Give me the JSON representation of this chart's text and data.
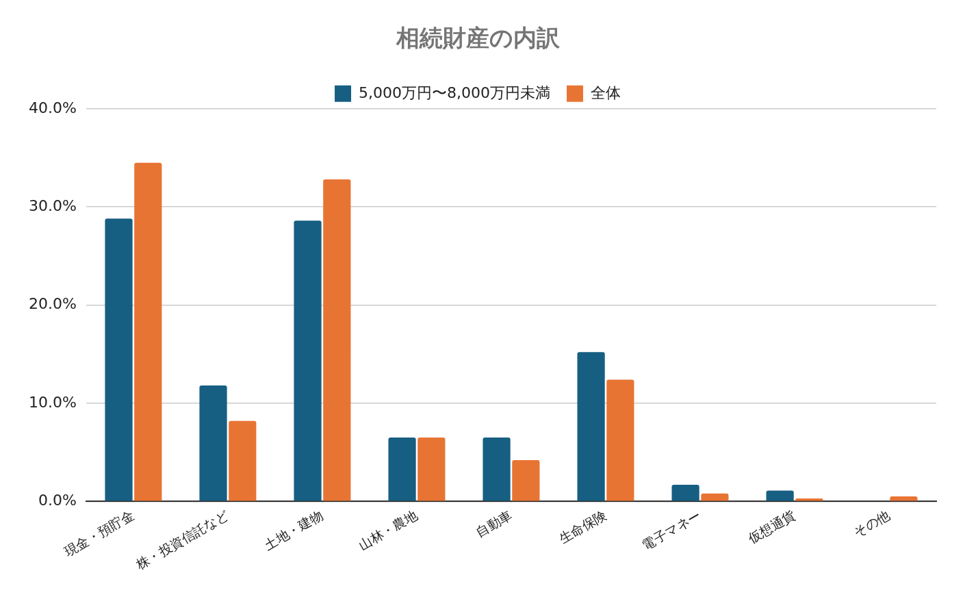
{
  "chart_data": {
    "type": "bar",
    "title": "相続財産の内訳",
    "categories": [
      "現金・預貯金",
      "株・投資信託など",
      "土地・建物",
      "山林・農地",
      "自動車",
      "生命保険",
      "電子マネー",
      "仮想通貨",
      "その他"
    ],
    "series": [
      {
        "name": "5,000万円〜8,000万円未満",
        "color": "#175f82",
        "values": [
          28.8,
          11.8,
          28.6,
          6.5,
          6.5,
          15.2,
          1.7,
          1.1,
          0
        ]
      },
      {
        "name": "全体",
        "color": "#e87434",
        "values": [
          34.5,
          8.2,
          32.8,
          6.5,
          4.2,
          12.4,
          0.8,
          0.3,
          0.5
        ]
      }
    ],
    "ylim": [
      0,
      40
    ],
    "yticks": [
      {
        "value": 0,
        "label": "0.0%"
      },
      {
        "value": 10,
        "label": "10.0%"
      },
      {
        "value": 20,
        "label": "20.0%"
      },
      {
        "value": 30,
        "label": "30.0%"
      },
      {
        "value": 40,
        "label": "40.0%"
      }
    ],
    "grid": "y",
    "legend": "top"
  }
}
